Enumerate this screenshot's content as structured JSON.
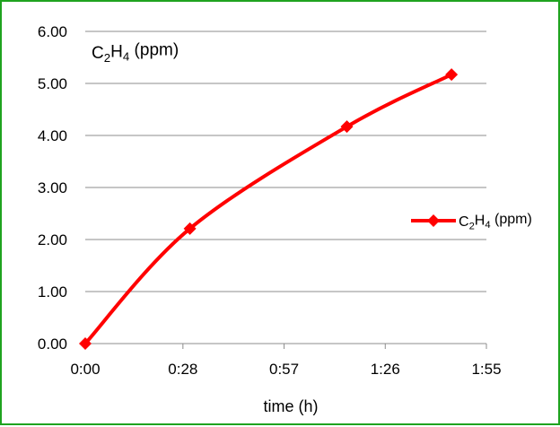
{
  "chart_data": {
    "type": "line",
    "title": "C₂H₄ (ppm)",
    "title_parts": {
      "base1": "C",
      "sub1": "2",
      "base2": "H",
      "sub2": "4",
      "rest": " (ppm)"
    },
    "xlabel": "time (h)",
    "ylabel": "",
    "x_unit": "minutes",
    "xlim": [
      0,
      115
    ],
    "ylim": [
      0,
      6
    ],
    "x_ticks": [
      0,
      28,
      57,
      86,
      115
    ],
    "x_tick_labels": [
      "0:00",
      "0:28",
      "0:57",
      "1:26",
      "1:55"
    ],
    "y_ticks": [
      0,
      1,
      2,
      3,
      4,
      5,
      6
    ],
    "y_tick_labels": [
      "0.00",
      "1.00",
      "2.00",
      "3.00",
      "4.00",
      "5.00",
      "6.00"
    ],
    "grid": true,
    "legend": "right",
    "series": [
      {
        "name": "C₂H₄ (ppm)",
        "color": "#ff0000",
        "marker": "diamond",
        "x": [
          0,
          30,
          75,
          105
        ],
        "x_labels": [
          "0:00",
          "0:30",
          "1:15",
          "1:45"
        ],
        "y": [
          0.0,
          2.21,
          4.17,
          5.17
        ]
      }
    ]
  }
}
